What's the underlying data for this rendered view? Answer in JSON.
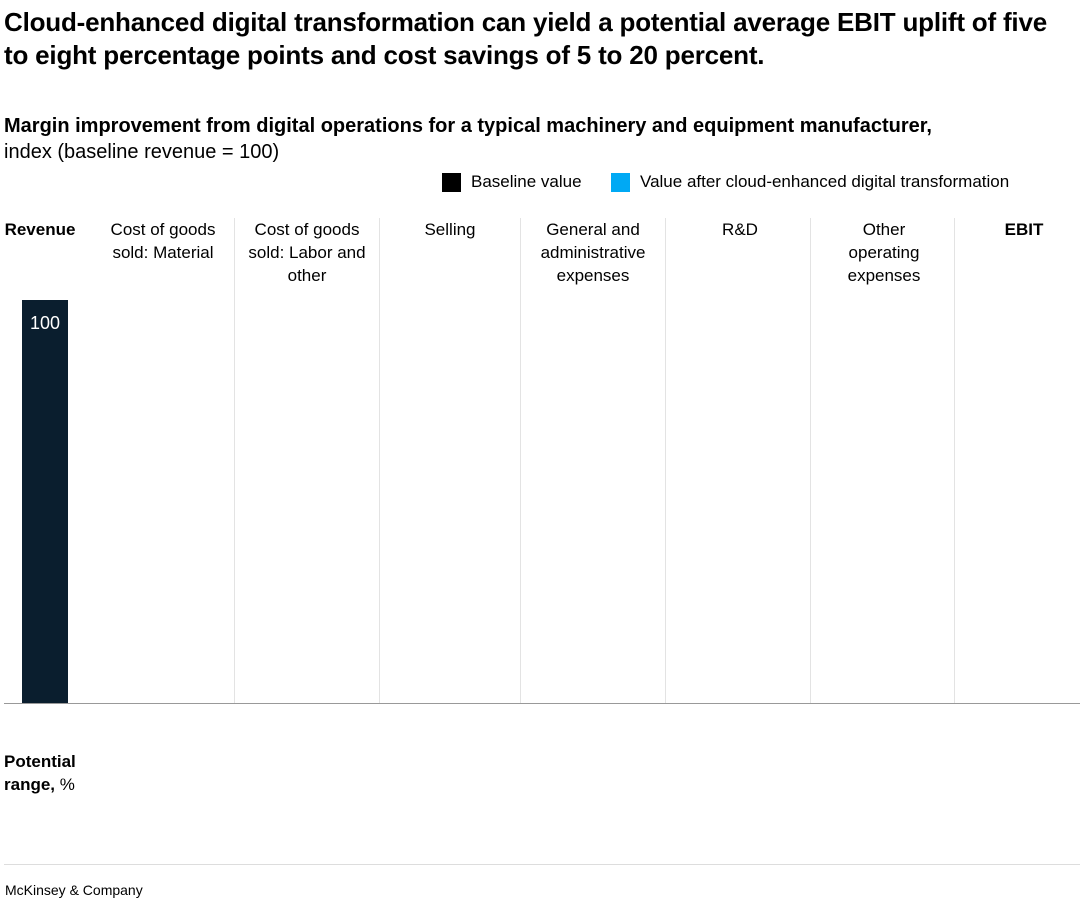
{
  "title": "Cloud-enhanced digital transformation can yield a potential average EBIT uplift of five to eight percentage points and cost savings of 5 to 20 percent.",
  "subtitle": "Margin improvement from digital operations for a typical machinery and equipment manufacturer,",
  "subtitle_unit": "index (baseline revenue = 100)",
  "legend": [
    {
      "label": "Baseline value",
      "color": "#000000"
    },
    {
      "label": "Value after cloud-enhanced digital transformation",
      "color": "#00A9F4"
    }
  ],
  "potential_range": {
    "label_bold": "Potential range,",
    "label_unit": "%"
  },
  "footer": "McKinsey & Company",
  "chart_data": {
    "type": "bar",
    "title": "Margin improvement from digital operations for a typical machinery and equipment manufacturer, index (baseline revenue = 100)",
    "categories": [
      "Revenue",
      "Cost of goods sold: Material",
      "Cost of goods sold: Labor and other",
      "Selling",
      "General and administrative expenses",
      "R&D",
      "Other operating expenses",
      "EBIT"
    ],
    "series": [
      {
        "name": "Baseline value",
        "color": "#0A1E2E",
        "values": [
          100,
          null,
          null,
          null,
          null,
          null,
          null,
          null
        ]
      },
      {
        "name": "Value after cloud-enhanced digital transformation",
        "color": "#00A9F4",
        "values": [
          null,
          null,
          null,
          null,
          null,
          null,
          null,
          null
        ]
      }
    ],
    "data_labels": [
      "100",
      "",
      "",
      "",
      "",
      "",
      "",
      ""
    ],
    "ylim": [
      0,
      100
    ],
    "grid": false,
    "legend_position": "top-right"
  }
}
